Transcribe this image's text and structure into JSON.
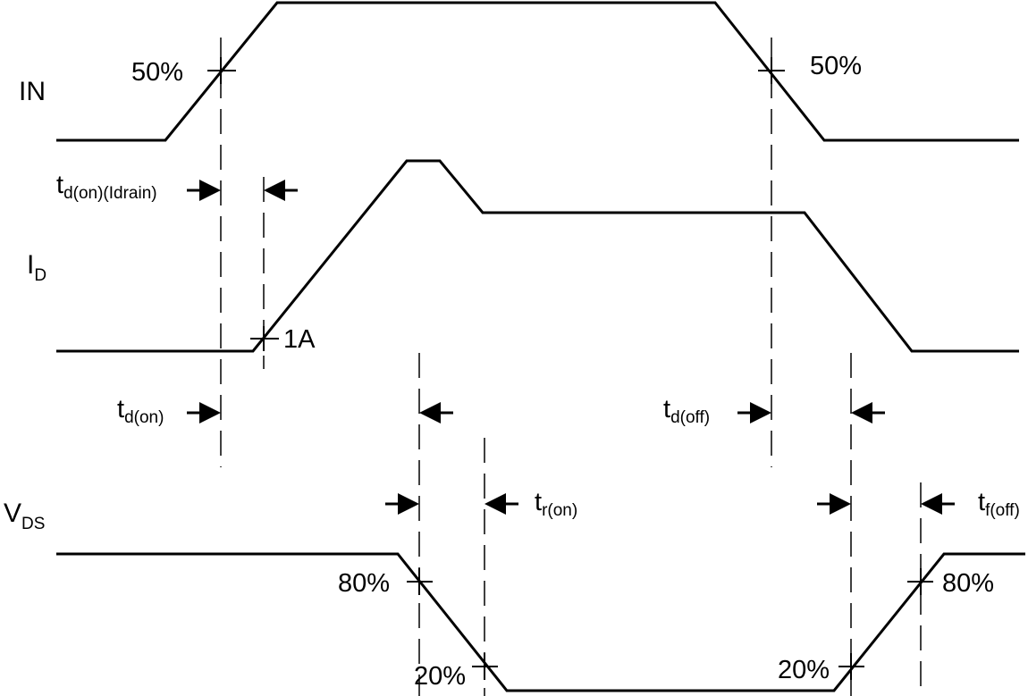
{
  "signals": {
    "in": {
      "label": "IN"
    },
    "id": {
      "label": "I",
      "sub": "D"
    },
    "vds": {
      "label": "V",
      "sub": "DS"
    }
  },
  "markers": {
    "in_rise": "50%",
    "in_fall": "50%",
    "id_threshold": "1A",
    "vds_fall_80": "80%",
    "vds_fall_20": "20%",
    "vds_rise_20": "20%",
    "vds_rise_80": "80%"
  },
  "timings": {
    "td_on_idrain": {
      "main": "t",
      "sub": "d(on)(Idrain)"
    },
    "td_on": {
      "main": "t",
      "sub": "d(on)"
    },
    "td_off": {
      "main": "t",
      "sub": "d(off)"
    },
    "tr_on": {
      "main": "t",
      "sub": "r(on)"
    },
    "tf_off": {
      "main": "t",
      "sub": "f(off)"
    }
  }
}
